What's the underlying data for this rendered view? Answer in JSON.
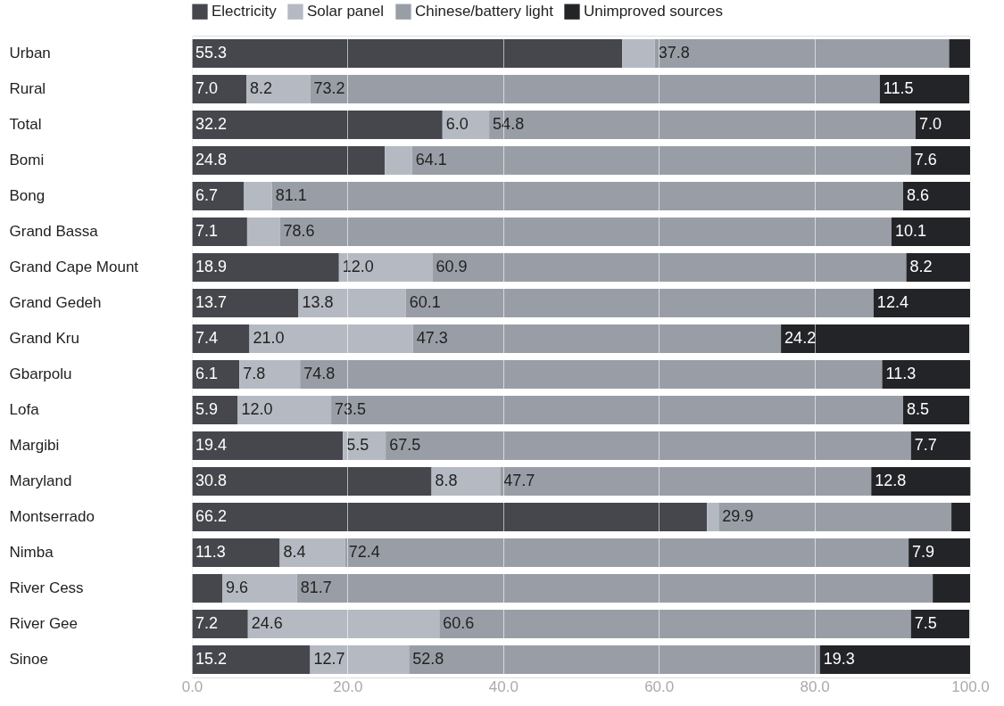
{
  "chart_data": {
    "type": "bar",
    "orientation": "horizontal",
    "stacked": true,
    "categories": [
      "Urban",
      "Rural",
      "Total",
      "Bomi",
      "Bong",
      "Grand Bassa",
      "Grand Cape Mount",
      "Grand Gedeh",
      "Grand Kru",
      "Gbarpolu",
      "Lofa",
      "Margibi",
      "Maryland",
      "Montserrado",
      "Nimba",
      "River Cess",
      "River Gee",
      "Sinoe"
    ],
    "series": [
      {
        "name": "Electricity",
        "color": "#45474d",
        "values": [
          55.3,
          7.0,
          32.2,
          24.8,
          6.7,
          7.1,
          18.9,
          13.7,
          7.4,
          6.1,
          5.9,
          19.4,
          30.8,
          66.2,
          11.3,
          3.9,
          7.2,
          15.2
        ],
        "value_labels": [
          "55.3",
          "7.0",
          "32.2",
          "24.8",
          "6.7",
          "7.1",
          "18.9",
          "13.7",
          "7.4",
          "6.1",
          "5.9",
          "19.4",
          "30.8",
          "66.2",
          "11.3",
          null,
          "7.2",
          "15.2"
        ]
      },
      {
        "name": "Solar panel",
        "color": "#b5bac2",
        "values": [
          4.2,
          8.2,
          6.0,
          3.5,
          3.6,
          4.2,
          12.0,
          13.8,
          21.0,
          7.8,
          12.0,
          5.5,
          8.8,
          1.5,
          8.4,
          9.6,
          24.6,
          12.7
        ],
        "value_labels": [
          null,
          "8.2",
          "6.0",
          null,
          null,
          null,
          "12.0",
          "13.8",
          "21.0",
          "7.8",
          "12.0",
          "5.5",
          "8.8",
          null,
          "8.4",
          "9.6",
          "24.6",
          "12.7"
        ]
      },
      {
        "name": "Chinese/battery light",
        "color": "#999ea6",
        "values": [
          37.8,
          73.2,
          54.8,
          64.1,
          81.1,
          78.6,
          60.9,
          60.1,
          47.3,
          74.8,
          73.5,
          67.5,
          47.7,
          29.9,
          72.4,
          81.7,
          60.6,
          52.8
        ],
        "value_labels": [
          "37.8",
          "73.2",
          "54.8",
          "64.1",
          "81.1",
          "78.6",
          "60.9",
          "60.1",
          "47.3",
          "74.8",
          "73.5",
          "67.5",
          "47.7",
          "29.9",
          "72.4",
          "81.7",
          "60.6",
          "52.8"
        ]
      },
      {
        "name": "Unimproved sources",
        "color": "#232428",
        "values": [
          2.7,
          11.5,
          7.0,
          7.6,
          8.6,
          10.1,
          8.2,
          12.4,
          24.2,
          11.3,
          8.5,
          7.7,
          12.8,
          2.4,
          7.9,
          4.8,
          7.5,
          19.3
        ],
        "value_labels": [
          null,
          "11.5",
          "7.0",
          "7.6",
          "8.6",
          "10.1",
          "8.2",
          "12.4",
          "24.2",
          "11.3",
          "8.5",
          "7.7",
          "12.8",
          null,
          "7.9",
          null,
          "7.5",
          "19.3"
        ]
      }
    ],
    "xlim": [
      0,
      100
    ],
    "xticks": [
      {
        "value": 0,
        "label": "0.0"
      },
      {
        "value": 20,
        "label": "20.0"
      },
      {
        "value": 40,
        "label": "40.0"
      },
      {
        "value": 60,
        "label": "60.0"
      },
      {
        "value": 80,
        "label": "80.0"
      },
      {
        "value": 100,
        "label": "100.0"
      }
    ],
    "grid": "x",
    "legend": "top left"
  }
}
